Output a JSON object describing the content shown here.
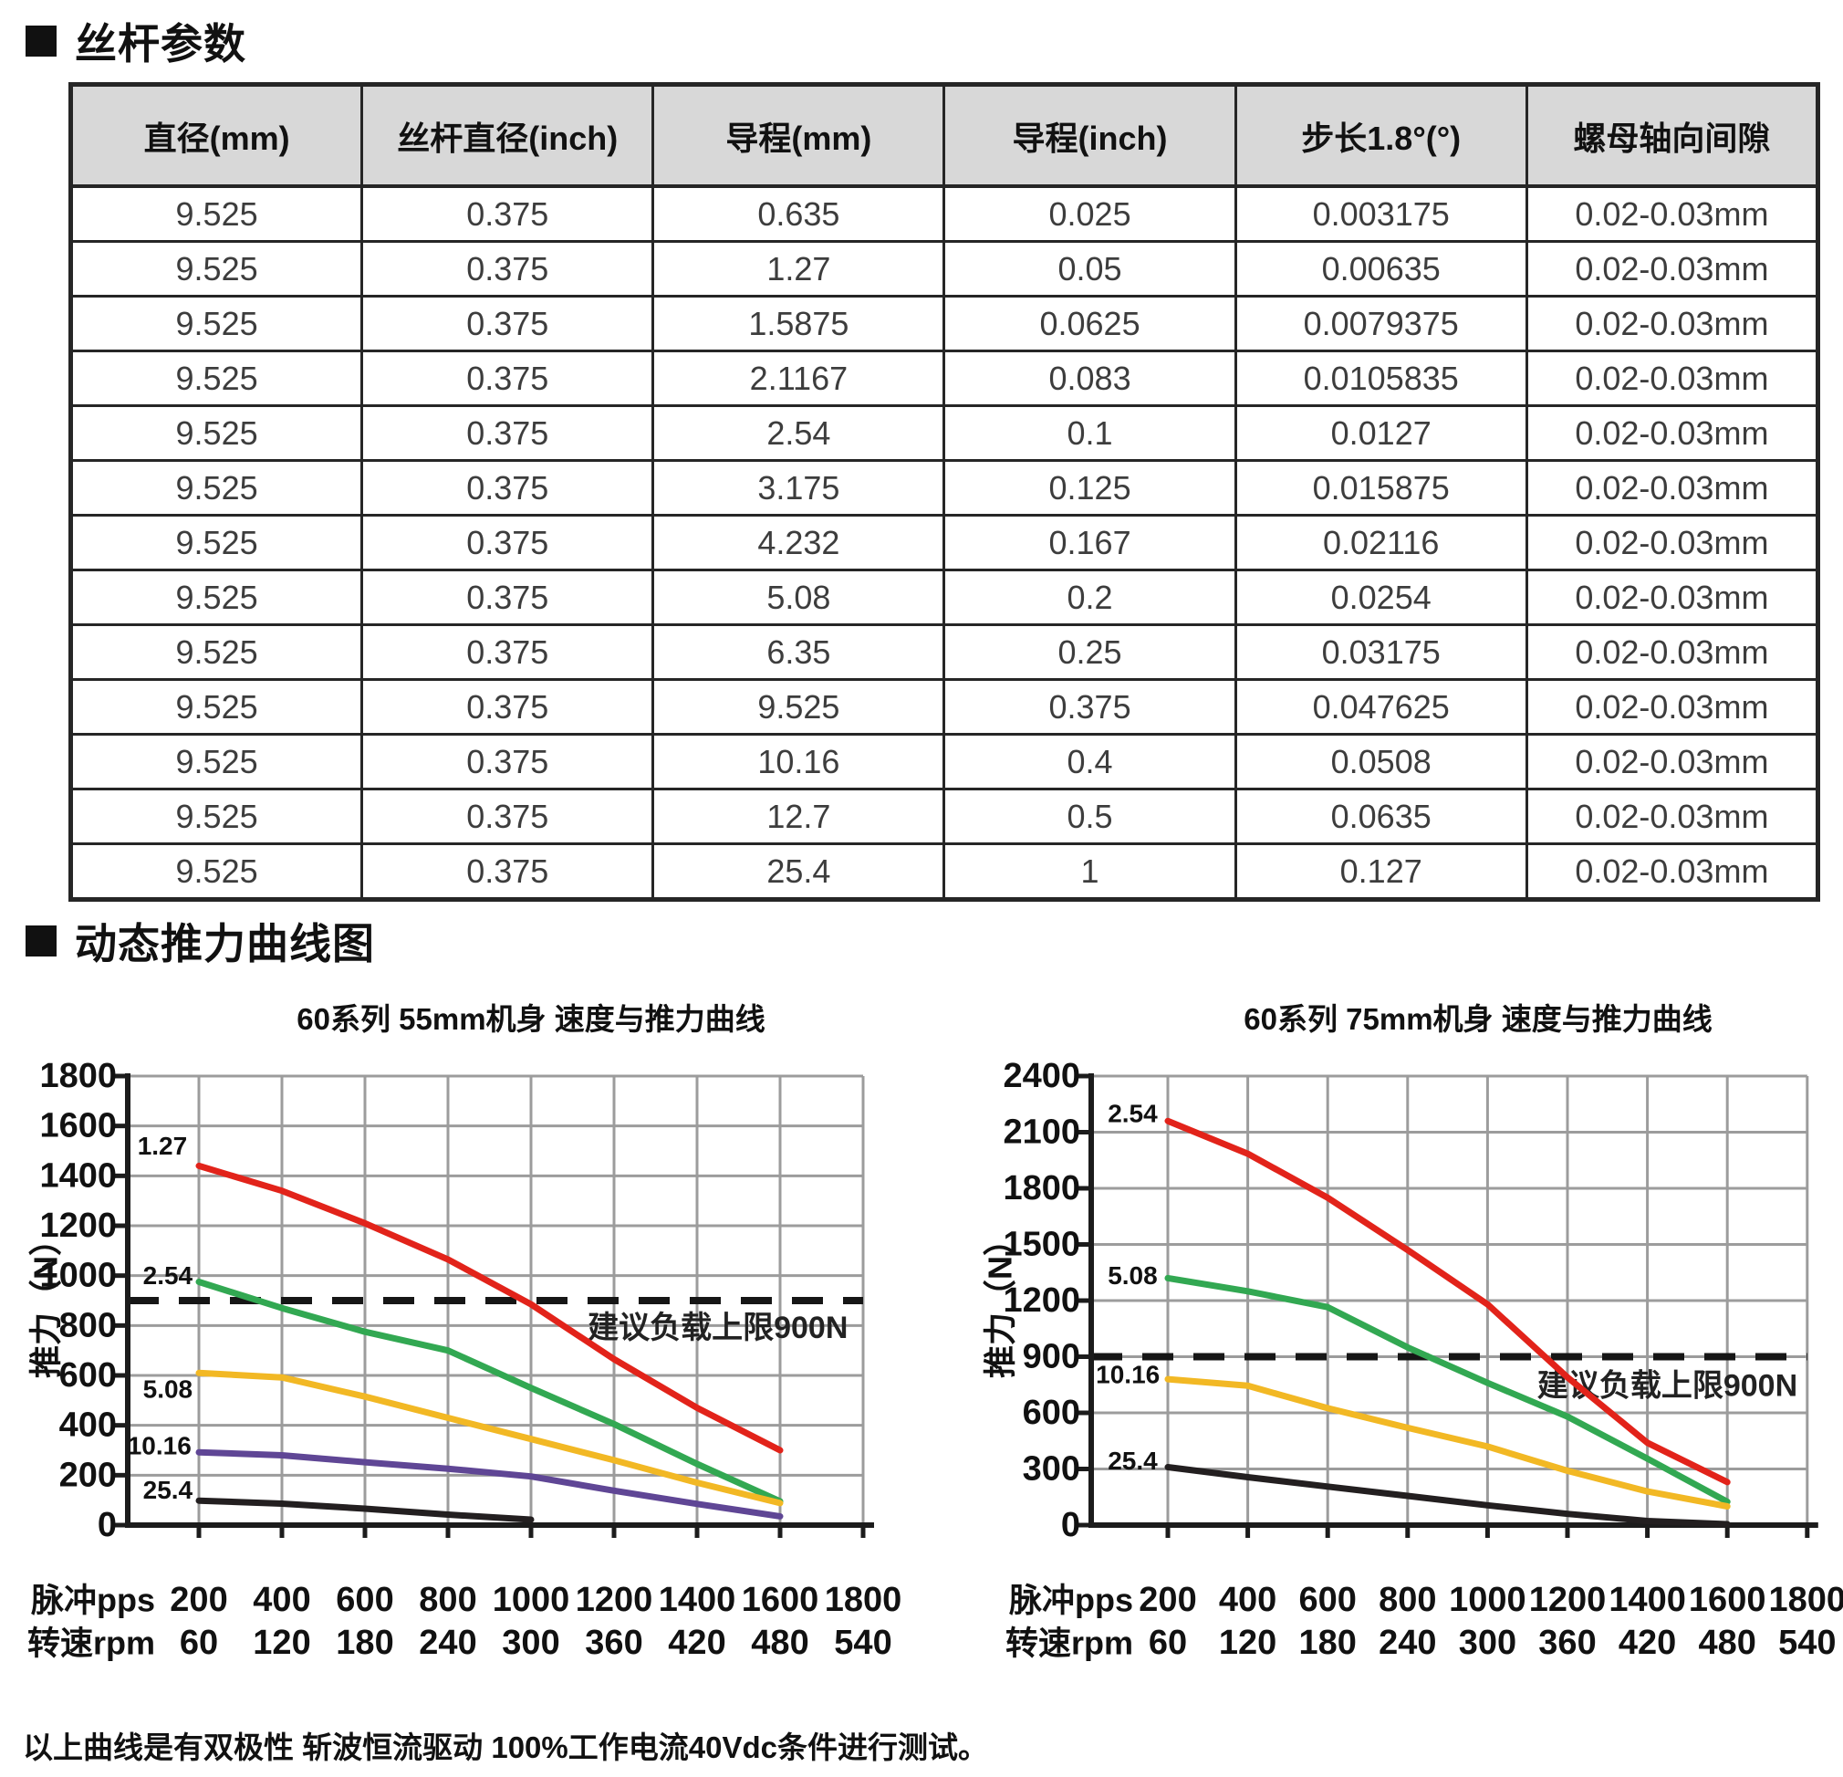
{
  "sections": [
    {
      "title": "丝杆参数"
    },
    {
      "title": "动态推力曲线图"
    }
  ],
  "page": {
    "footer_note": "以上曲线是有双极性 斩波恒流驱动 100%工作电流40Vdc条件进行测试。"
  },
  "table": {
    "headers": [
      "直径(mm)",
      "丝杆直径(inch)",
      "导程(mm)",
      "导程(inch)",
      "步长1.8°(°)",
      "螺母轴向间隙"
    ],
    "rows": [
      [
        "9.525",
        "0.375",
        "0.635",
        "0.025",
        "0.003175",
        "0.02-0.03mm"
      ],
      [
        "9.525",
        "0.375",
        "1.27",
        "0.05",
        "0.00635",
        "0.02-0.03mm"
      ],
      [
        "9.525",
        "0.375",
        "1.5875",
        "0.0625",
        "0.0079375",
        "0.02-0.03mm"
      ],
      [
        "9.525",
        "0.375",
        "2.1167",
        "0.083",
        "0.0105835",
        "0.02-0.03mm"
      ],
      [
        "9.525",
        "0.375",
        "2.54",
        "0.1",
        "0.0127",
        "0.02-0.03mm"
      ],
      [
        "9.525",
        "0.375",
        "3.175",
        "0.125",
        "0.015875",
        "0.02-0.03mm"
      ],
      [
        "9.525",
        "0.375",
        "4.232",
        "0.167",
        "0.02116",
        "0.02-0.03mm"
      ],
      [
        "9.525",
        "0.375",
        "5.08",
        "0.2",
        "0.0254",
        "0.02-0.03mm"
      ],
      [
        "9.525",
        "0.375",
        "6.35",
        "0.25",
        "0.03175",
        "0.02-0.03mm"
      ],
      [
        "9.525",
        "0.375",
        "9.525",
        "0.375",
        "0.047625",
        "0.02-0.03mm"
      ],
      [
        "9.525",
        "0.375",
        "10.16",
        "0.4",
        "0.0508",
        "0.02-0.03mm"
      ],
      [
        "9.525",
        "0.375",
        "12.7",
        "0.5",
        "0.0635",
        "0.02-0.03mm"
      ],
      [
        "9.525",
        "0.375",
        "25.4",
        "1",
        "0.127",
        "0.02-0.03mm"
      ]
    ]
  },
  "chart_data": [
    {
      "type": "line",
      "title": "60系列 55mm机身 速度与推力曲线",
      "ylabel": "推力（N）",
      "ylim": [
        0,
        1800
      ],
      "ytick_step": 200,
      "grid": true,
      "x_rows": [
        {
          "label": "脉冲pps",
          "ticks": [
            200,
            400,
            600,
            800,
            1000,
            1200,
            1400,
            1600,
            1800
          ]
        },
        {
          "label": "转速rpm",
          "ticks": [
            60,
            120,
            180,
            240,
            300,
            360,
            420,
            480,
            540
          ]
        }
      ],
      "limit_line": {
        "value": 900,
        "label": "建议负载上限900N",
        "label_x": 1450,
        "label_y": 790
      },
      "series": [
        {
          "name": "1.27",
          "color": "#e2231a",
          "label_x": 112,
          "label_y": 1520,
          "points": [
            [
              200,
              1440
            ],
            [
              400,
              1340
            ],
            [
              600,
              1210
            ],
            [
              800,
              1065
            ],
            [
              1000,
              885
            ],
            [
              1200,
              665
            ],
            [
              1400,
              470
            ],
            [
              1600,
              300
            ]
          ]
        },
        {
          "name": "2.54",
          "color": "#32a852",
          "label_x": 125,
          "label_y": 1000,
          "points": [
            [
              200,
              975
            ],
            [
              400,
              870
            ],
            [
              600,
              775
            ],
            [
              800,
              700
            ],
            [
              1000,
              550
            ],
            [
              1200,
              405
            ],
            [
              1400,
              245
            ],
            [
              1600,
              95
            ]
          ]
        },
        {
          "name": "5.08",
          "color": "#f2b824",
          "label_x": 125,
          "label_y": 545,
          "points": [
            [
              200,
              610
            ],
            [
              400,
              592
            ],
            [
              600,
              515
            ],
            [
              800,
              430
            ],
            [
              1000,
              345
            ],
            [
              1200,
              260
            ],
            [
              1400,
              170
            ],
            [
              1600,
              88
            ]
          ]
        },
        {
          "name": "10.16",
          "color": "#5f4695",
          "label_x": 105,
          "label_y": 318,
          "points": [
            [
              200,
              292
            ],
            [
              400,
              280
            ],
            [
              600,
              252
            ],
            [
              800,
              226
            ],
            [
              1000,
              195
            ],
            [
              1200,
              138
            ],
            [
              1400,
              85
            ],
            [
              1600,
              35
            ]
          ]
        },
        {
          "name": "25.4",
          "color": "#231f20",
          "label_x": 125,
          "label_y": 140,
          "points": [
            [
              200,
              98
            ],
            [
              400,
              86
            ],
            [
              600,
              66
            ],
            [
              800,
              42
            ],
            [
              1000,
              22
            ]
          ]
        }
      ]
    },
    {
      "type": "line",
      "title": "60系列 75mm机身 速度与推力曲线",
      "ylabel": "推力（N）",
      "ylim": [
        0,
        2400
      ],
      "ytick_step": 300,
      "grid": true,
      "x_rows": [
        {
          "label": "脉冲pps",
          "ticks": [
            200,
            400,
            600,
            800,
            1000,
            1200,
            1400,
            1600,
            1800
          ]
        },
        {
          "label": "转速rpm",
          "ticks": [
            60,
            120,
            180,
            240,
            300,
            360,
            420,
            480,
            540
          ]
        }
      ],
      "limit_line": {
        "value": 900,
        "label": "建议负载上限900N",
        "label_x": 1450,
        "label_y": 745
      },
      "series": [
        {
          "name": "2.54",
          "color": "#e2231a",
          "label_x": 112,
          "label_y": 2200,
          "points": [
            [
              200,
              2160
            ],
            [
              400,
              1985
            ],
            [
              600,
              1750
            ],
            [
              800,
              1470
            ],
            [
              1000,
              1180
            ],
            [
              1200,
              790
            ],
            [
              1400,
              440
            ],
            [
              1600,
              230
            ]
          ]
        },
        {
          "name": "5.08",
          "color": "#32a852",
          "label_x": 112,
          "label_y": 1335,
          "points": [
            [
              200,
              1320
            ],
            [
              400,
              1250
            ],
            [
              600,
              1165
            ],
            [
              800,
              950
            ],
            [
              1000,
              760
            ],
            [
              1200,
              580
            ],
            [
              1400,
              355
            ],
            [
              1600,
              125
            ]
          ]
        },
        {
          "name": "10.16",
          "color": "#f2b824",
          "label_x": 100,
          "label_y": 805,
          "points": [
            [
              200,
              780
            ],
            [
              400,
              745
            ],
            [
              600,
              625
            ],
            [
              800,
              520
            ],
            [
              1000,
              420
            ],
            [
              1200,
              290
            ],
            [
              1400,
              180
            ],
            [
              1600,
              100
            ]
          ]
        },
        {
          "name": "25.4",
          "color": "#231f20",
          "label_x": 112,
          "label_y": 345,
          "points": [
            [
              200,
              310
            ],
            [
              400,
              256
            ],
            [
              600,
              206
            ],
            [
              800,
              156
            ],
            [
              1000,
              106
            ],
            [
              1200,
              60
            ],
            [
              1400,
              22
            ],
            [
              1600,
              5
            ]
          ]
        }
      ]
    }
  ]
}
